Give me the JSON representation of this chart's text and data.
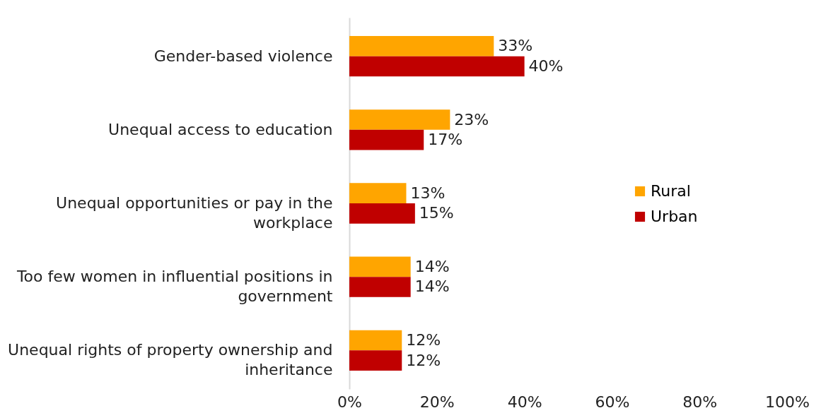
{
  "chart_data": {
    "type": "bar",
    "orientation": "horizontal",
    "categories": [
      "Gender-based violence",
      "Unequal access to education",
      "Unequal opportunities or pay in the workplace",
      "Too few women in influential positions in government",
      "Unequal rights of property ownership and inheritance"
    ],
    "series": [
      {
        "name": "Rural",
        "color": "#ffa500",
        "values": [
          33,
          23,
          13,
          14,
          12
        ],
        "value_labels": [
          "33%",
          "23%",
          "13%",
          "14%",
          "12%"
        ]
      },
      {
        "name": "Urban",
        "color": "#c00000",
        "values": [
          40,
          17,
          15,
          14,
          12
        ],
        "value_labels": [
          "40%",
          "17%",
          "15%",
          "14%",
          "12%"
        ]
      }
    ],
    "xlim": [
      0,
      100
    ],
    "xticks": [
      {
        "value": 0,
        "label": "0%"
      },
      {
        "value": 20,
        "label": "20%"
      },
      {
        "value": 40,
        "label": "40%"
      },
      {
        "value": 60,
        "label": "60%"
      },
      {
        "value": 80,
        "label": "80%"
      },
      {
        "value": 100,
        "label": "100%"
      }
    ],
    "grid": false,
    "legend": "right"
  }
}
